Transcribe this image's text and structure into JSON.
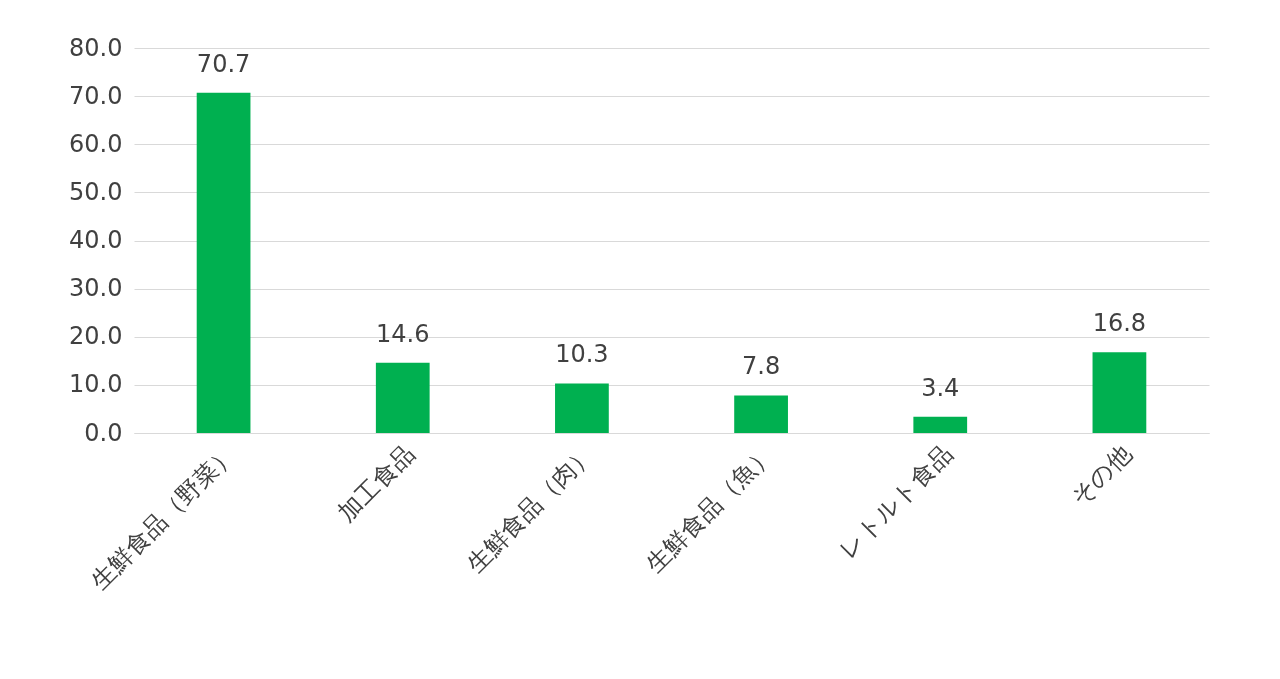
{
  "chart_data": {
    "type": "bar",
    "categories": [
      "生鮮食品（野菜）",
      "加工食品",
      "生鮮食品（肉）",
      "生鮮食品（魚）",
      "レトルト食品",
      "その他"
    ],
    "values": [
      70.7,
      14.6,
      10.3,
      7.8,
      3.4,
      16.8
    ],
    "color": "#00b050",
    "ylim": [
      0,
      80
    ],
    "yticks": [
      {
        "value": 0,
        "label": "0.0"
      },
      {
        "value": 10,
        "label": "10.0"
      },
      {
        "value": 20,
        "label": "20.0"
      },
      {
        "value": 30,
        "label": "30.0"
      },
      {
        "value": 40,
        "label": "40.0"
      },
      {
        "value": 50,
        "label": "50.0"
      },
      {
        "value": 60,
        "label": "60.0"
      },
      {
        "value": 70,
        "label": "70.0"
      },
      {
        "value": 80,
        "label": "80.0"
      }
    ],
    "grid": "y",
    "data_labels": true
  }
}
